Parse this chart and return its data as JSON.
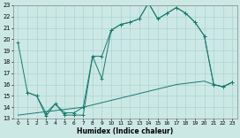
{
  "xlabel": "Humidex (Indice chaleur)",
  "bg_color": "#cce8e5",
  "grid_color": "#aad4d0",
  "line_color": "#1a7a6e",
  "xlim": [
    -0.5,
    23.5
  ],
  "ylim": [
    13,
    23
  ],
  "xticks": [
    0,
    1,
    2,
    3,
    4,
    5,
    6,
    7,
    8,
    9,
    10,
    11,
    12,
    13,
    14,
    15,
    16,
    17,
    18,
    19,
    20,
    21,
    22,
    23
  ],
  "yticks": [
    13,
    14,
    15,
    16,
    17,
    18,
    19,
    20,
    21,
    22,
    23
  ],
  "line1_x": [
    0,
    1,
    2,
    3,
    4,
    5,
    6,
    7,
    8,
    9,
    10,
    11,
    12,
    13,
    14,
    15,
    16,
    17,
    18,
    19,
    20,
    21,
    22,
    23
  ],
  "line1_y": [
    19.7,
    15.3,
    15.0,
    13.2,
    14.3,
    13.3,
    13.3,
    13.3,
    18.5,
    16.5,
    20.8,
    21.3,
    21.5,
    21.8,
    23.2,
    21.8,
    22.3,
    22.8,
    22.3,
    21.5,
    20.3,
    16.0,
    15.8,
    16.2
  ],
  "line2_x": [
    0,
    1,
    2,
    3,
    4,
    5,
    6,
    7,
    8,
    9,
    10,
    11,
    12,
    13,
    14,
    15,
    16,
    17,
    18,
    19,
    20,
    21,
    22,
    23
  ],
  "line2_y": [
    13.3,
    13.4,
    13.5,
    13.6,
    13.7,
    13.8,
    13.9,
    14.0,
    14.2,
    14.4,
    14.6,
    14.8,
    15.0,
    15.2,
    15.4,
    15.6,
    15.8,
    16.0,
    16.1,
    16.2,
    16.3,
    16.0,
    15.8,
    16.2
  ],
  "line3_x": [
    1,
    2,
    3,
    4,
    5,
    6,
    7,
    8,
    9,
    10,
    11,
    12,
    13,
    14,
    15,
    16,
    17,
    18,
    19,
    20,
    21,
    22,
    23
  ],
  "line3_y": [
    15.3,
    15.0,
    13.5,
    14.3,
    13.5,
    13.5,
    14.0,
    18.5,
    18.5,
    20.8,
    21.3,
    21.5,
    21.8,
    23.2,
    21.8,
    22.3,
    22.8,
    22.3,
    21.5,
    20.3,
    16.0,
    15.8,
    16.2
  ]
}
